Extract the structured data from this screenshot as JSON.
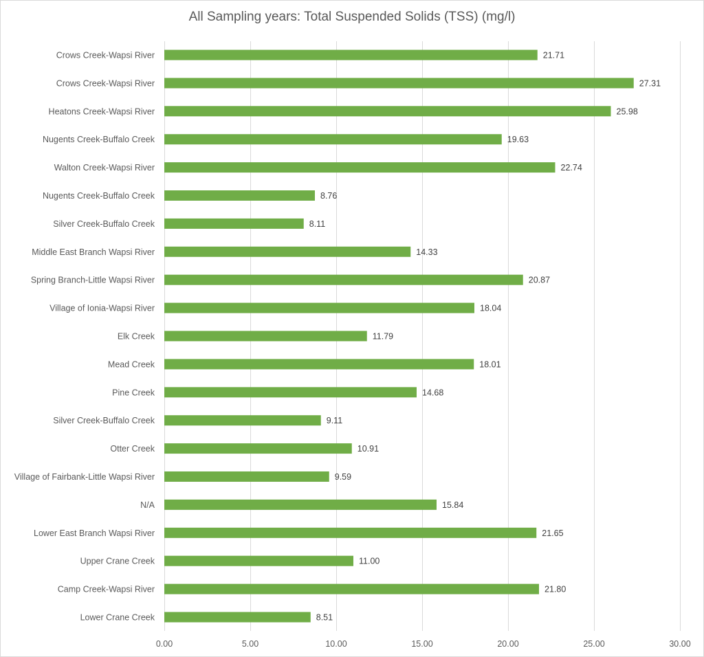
{
  "chart_data": {
    "type": "bar",
    "orientation": "horizontal",
    "title": "All Sampling years: Total Suspended Solids (TSS)  (mg/l)",
    "categories": [
      "Crows Creek-Wapsi River",
      "Crows Creek-Wapsi River",
      "Heatons Creek-Wapsi River",
      "Nugents Creek-Buffalo Creek",
      "Walton Creek-Wapsi River",
      "Nugents Creek-Buffalo Creek",
      "Silver Creek-Buffalo Creek",
      "Middle East Branch Wapsi River",
      "Spring Branch-Little Wapsi River",
      "Village of Ionia-Wapsi River",
      "Elk Creek",
      "Mead Creek",
      "Pine Creek",
      "Silver Creek-Buffalo Creek",
      "Otter Creek",
      "Village of Fairbank-Little Wapsi River",
      "N/A",
      "Lower East Branch Wapsi River",
      "Upper Crane Creek",
      "Camp Creek-Wapsi River",
      "Lower Crane Creek"
    ],
    "values": [
      21.71,
      27.31,
      25.98,
      19.63,
      22.74,
      8.76,
      8.11,
      14.33,
      20.87,
      18.04,
      11.79,
      18.01,
      14.68,
      9.11,
      10.91,
      9.59,
      15.84,
      21.65,
      11.0,
      21.8,
      8.51
    ],
    "value_labels": [
      "21.71",
      "27.31",
      "25.98",
      "19.63",
      "22.74",
      "8.76",
      "8.11",
      "14.33",
      "20.87",
      "18.04",
      "11.79",
      "18.01",
      "14.68",
      "9.11",
      "10.91",
      "9.59",
      "15.84",
      "21.65",
      "11.00",
      "21.80",
      "8.51"
    ],
    "xlim": [
      0,
      30
    ],
    "x_ticks": [
      0,
      5,
      10,
      15,
      20,
      25,
      30
    ],
    "x_tick_labels": [
      "0.00",
      "5.00",
      "10.00",
      "15.00",
      "20.00",
      "25.00",
      "30.00"
    ],
    "xlabel": "",
    "ylabel": "",
    "grid": "vertical",
    "legend": "none",
    "bar_color": "#70ad47"
  }
}
